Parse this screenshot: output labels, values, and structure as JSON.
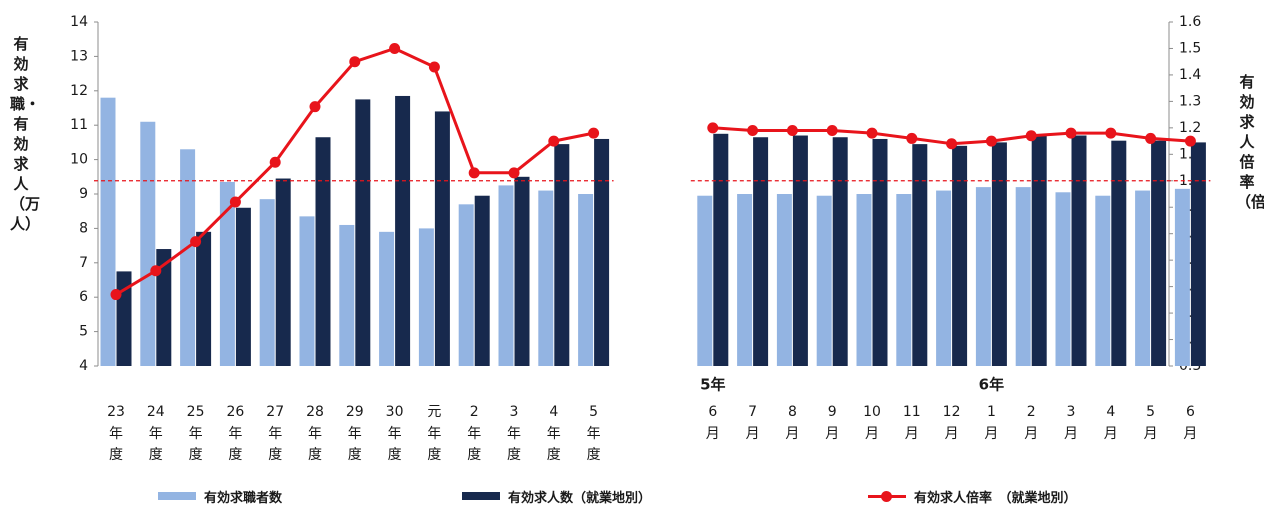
{
  "chart_data": {
    "type": "bar+line",
    "categories": [
      {
        "top": "23",
        "mid": "年",
        "bot": "度"
      },
      {
        "top": "24",
        "mid": "年",
        "bot": "度"
      },
      {
        "top": "25",
        "mid": "年",
        "bot": "度"
      },
      {
        "top": "26",
        "mid": "年",
        "bot": "度"
      },
      {
        "top": "27",
        "mid": "年",
        "bot": "度"
      },
      {
        "top": "28",
        "mid": "年",
        "bot": "度"
      },
      {
        "top": "29",
        "mid": "年",
        "bot": "度"
      },
      {
        "top": "30",
        "mid": "年",
        "bot": "度"
      },
      {
        "top": "元",
        "mid": "年",
        "bot": "度"
      },
      {
        "top": "2",
        "mid": "年",
        "bot": "度"
      },
      {
        "top": "3",
        "mid": "年",
        "bot": "度"
      },
      {
        "top": "4",
        "mid": "年",
        "bot": "度"
      },
      {
        "top": "5",
        "mid": "年",
        "bot": "度"
      },
      {
        "top": "6",
        "mid": "月",
        "bot": ""
      },
      {
        "top": "7",
        "mid": "月",
        "bot": ""
      },
      {
        "top": "8",
        "mid": "月",
        "bot": ""
      },
      {
        "top": "9",
        "mid": "月",
        "bot": ""
      },
      {
        "top": "10",
        "mid": "月",
        "bot": ""
      },
      {
        "top": "11",
        "mid": "月",
        "bot": ""
      },
      {
        "top": "12",
        "mid": "月",
        "bot": ""
      },
      {
        "top": "1",
        "mid": "月",
        "bot": ""
      },
      {
        "top": "2",
        "mid": "月",
        "bot": ""
      },
      {
        "top": "3",
        "mid": "月",
        "bot": ""
      },
      {
        "top": "4",
        "mid": "月",
        "bot": ""
      },
      {
        "top": "5",
        "mid": "月",
        "bot": ""
      },
      {
        "top": "6",
        "mid": "月",
        "bot": ""
      }
    ],
    "group_labels": [
      {
        "label": "5年",
        "at_index": 13
      },
      {
        "label": "6年",
        "at_index": 20
      }
    ],
    "series": [
      {
        "name": "有効求職者数",
        "type": "bar",
        "axis": "left",
        "color": "#93b4e2",
        "values": [
          11.8,
          11.1,
          10.3,
          9.35,
          8.85,
          8.35,
          8.1,
          7.9,
          8.0,
          8.7,
          9.25,
          9.1,
          9.0,
          8.95,
          9.0,
          9.0,
          8.95,
          9.0,
          9.0,
          9.1,
          9.2,
          9.2,
          9.05,
          8.95,
          9.1,
          9.15
        ]
      },
      {
        "name": "有効求人数（就業地別）",
        "type": "bar",
        "axis": "left",
        "color": "#17294d",
        "values": [
          6.75,
          7.4,
          7.9,
          8.6,
          9.45,
          10.65,
          11.75,
          11.85,
          11.4,
          8.95,
          9.5,
          10.45,
          10.6,
          10.75,
          10.65,
          10.7,
          10.65,
          10.6,
          10.45,
          10.4,
          10.5,
          10.7,
          10.7,
          10.55,
          10.55,
          10.5
        ]
      },
      {
        "name": "有効求人倍率　（就業地別）",
        "type": "line",
        "axis": "right",
        "color": "#e8141b",
        "values": [
          0.57,
          0.66,
          0.77,
          0.92,
          1.07,
          1.28,
          1.45,
          1.5,
          1.43,
          1.03,
          1.03,
          1.15,
          1.18,
          1.2,
          1.19,
          1.19,
          1.19,
          1.18,
          1.16,
          1.14,
          1.15,
          1.17,
          1.18,
          1.18,
          1.16,
          1.15
        ]
      }
    ],
    "reference_line": {
      "axis": "right",
      "value": 1.0,
      "style": "dashed",
      "color": "#e8141b"
    },
    "ylabel_left": "有効求職・有効求人（万人）",
    "ylabel_right": "有効求人倍率（倍）",
    "yleft": {
      "min": 4,
      "max": 14,
      "ticks": [
        "4",
        "5",
        "6",
        "7",
        "8",
        "9",
        "10",
        "11",
        "12",
        "13",
        "14"
      ]
    },
    "yright": {
      "min": 0.3,
      "max": 1.6,
      "ticks": [
        "0.3",
        "0.4",
        "0.5",
        "0.6",
        "0.7",
        "0.8",
        "0.9",
        "1.0",
        "1.1",
        "1.2",
        "1.3",
        "1.4",
        "1.5",
        "1.6"
      ]
    },
    "legend_position": "bottom",
    "grid": false
  }
}
